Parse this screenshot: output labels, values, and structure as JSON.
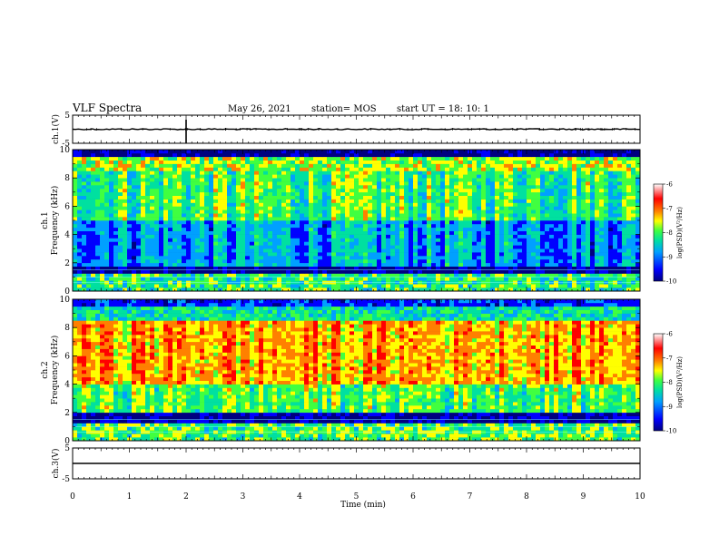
{
  "header": {
    "title": "VLF Spectra",
    "date": "May 26, 2021",
    "station": "station= MOS",
    "start": "start  UT =   18: 10: 1"
  },
  "colors": {
    "spectrogram": [
      "#000080",
      "#0000ff",
      "#00a0ff",
      "#00e0a0",
      "#40ff40",
      "#ffff00",
      "#ff8000",
      "#ff0000",
      "#ffffff"
    ]
  },
  "chart_data": [
    {
      "type": "line",
      "panel": "ch1-waveform",
      "ylabel": "ch.1(V)",
      "ylim": [
        -5,
        5
      ],
      "y_ticks": [
        "5",
        "-5"
      ],
      "xlim": [
        0,
        10
      ],
      "description_value": "near-constant trace at about 0 V"
    },
    {
      "type": "heatmap",
      "panel": "ch1-spectrogram",
      "ylabel": "ch.1\nFrequency (kHz)",
      "ylim": [
        0,
        10
      ],
      "y_ticks": [
        "0",
        "2",
        "4",
        "6",
        "8",
        "10"
      ],
      "xlim": [
        0,
        10
      ],
      "colorbar": {
        "label": "log(PSD)(V²/Hz)",
        "range": [
          -10,
          -6
        ],
        "ticks": [
          "-6",
          "-7",
          "-8",
          "-9",
          "-10"
        ]
      }
    },
    {
      "type": "heatmap",
      "panel": "ch2-spectrogram",
      "ylabel": "ch.2\nFrequency (kHz)",
      "ylim": [
        0,
        10
      ],
      "y_ticks": [
        "0",
        "2",
        "4",
        "6",
        "8",
        "10"
      ],
      "xlim": [
        0,
        10
      ],
      "colorbar": {
        "label": "log(PSD)(V²/Hz)",
        "range": [
          -10,
          -6
        ],
        "ticks": [
          "-6",
          "-7",
          "-8",
          "-9",
          "-10"
        ]
      }
    },
    {
      "type": "line",
      "panel": "ch3-waveform",
      "ylabel": "ch.3(V)",
      "ylim": [
        -5,
        5
      ],
      "y_ticks": [
        "5",
        "-5"
      ],
      "xlim": [
        0,
        10
      ],
      "description_value": "constant trace at about 0 V"
    }
  ],
  "xaxis": {
    "label": "Time  (min)",
    "ticks": [
      "0",
      "1",
      "2",
      "3",
      "4",
      "5",
      "6",
      "7",
      "8",
      "9",
      "10"
    ]
  }
}
